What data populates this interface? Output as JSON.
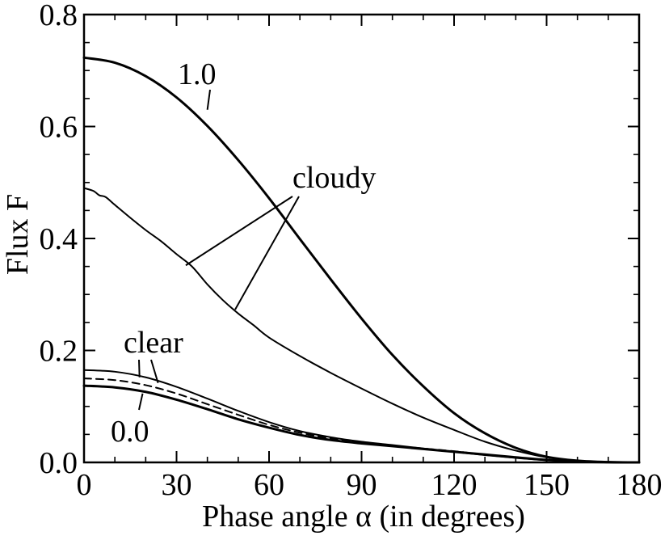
{
  "chart_data": {
    "type": "line",
    "xlabel": "Phase angle α (in degrees)",
    "ylabel": "Flux  F",
    "xlim": [
      0,
      180
    ],
    "ylim": [
      0,
      0.8
    ],
    "xticks": [
      "0",
      "30",
      "60",
      "90",
      "120",
      "150",
      "180"
    ],
    "yticks": [
      "0.0",
      "0.2",
      "0.4",
      "0.6",
      "0.8"
    ],
    "grid": false,
    "legend": "none",
    "series": [
      {
        "name": "1.0",
        "style": "solid-thick",
        "x": [
          0,
          10,
          20,
          30,
          40,
          50,
          60,
          70,
          80,
          90,
          100,
          110,
          120,
          130,
          140,
          150,
          160,
          170,
          180
        ],
        "y": [
          0.723,
          0.714,
          0.69,
          0.652,
          0.601,
          0.54,
          0.472,
          0.399,
          0.327,
          0.257,
          0.192,
          0.136,
          0.088,
          0.052,
          0.026,
          0.01,
          0.003,
          0.0005,
          0.0
        ]
      },
      {
        "name": "cloudy",
        "style": "solid",
        "x": [
          0,
          3,
          5,
          7,
          10,
          15,
          20,
          25,
          30,
          35,
          40,
          45,
          50,
          55,
          60,
          70,
          80,
          90,
          100,
          110,
          120,
          130,
          140,
          150,
          160,
          170,
          180
        ],
        "y": [
          0.49,
          0.485,
          0.477,
          0.474,
          0.46,
          0.437,
          0.415,
          0.395,
          0.372,
          0.35,
          0.318,
          0.29,
          0.266,
          0.245,
          0.223,
          0.19,
          0.16,
          0.132,
          0.105,
          0.08,
          0.058,
          0.037,
          0.021,
          0.009,
          0.003,
          0.0005,
          0.0
        ]
      },
      {
        "name": "clear",
        "style": "solid",
        "x": [
          0,
          10,
          20,
          30,
          40,
          50,
          60,
          70,
          80,
          90,
          100,
          110,
          120,
          130,
          140,
          150,
          160,
          170,
          180
        ],
        "y": [
          0.165,
          0.162,
          0.152,
          0.135,
          0.114,
          0.092,
          0.072,
          0.056,
          0.045,
          0.037,
          0.031,
          0.025,
          0.019,
          0.013,
          0.008,
          0.004,
          0.0015,
          0.0003,
          0.0
        ]
      },
      {
        "name": "",
        "style": "dashed",
        "x": [
          0,
          10,
          20,
          30,
          40,
          50,
          60,
          70,
          80,
          90,
          100,
          110,
          120,
          130,
          140,
          150,
          160,
          170,
          180
        ],
        "y": [
          0.15,
          0.147,
          0.138,
          0.123,
          0.104,
          0.085,
          0.067,
          0.053,
          0.043,
          0.036,
          0.03,
          0.025,
          0.02,
          0.014,
          0.009,
          0.0045,
          0.0017,
          0.0003,
          0.0
        ]
      },
      {
        "name": "0.0",
        "style": "solid-thick",
        "x": [
          0,
          10,
          20,
          30,
          40,
          50,
          60,
          70,
          80,
          90,
          100,
          110,
          120,
          130,
          140,
          150,
          160,
          170,
          180
        ],
        "y": [
          0.137,
          0.134,
          0.126,
          0.112,
          0.095,
          0.077,
          0.062,
          0.049,
          0.04,
          0.034,
          0.029,
          0.024,
          0.019,
          0.014,
          0.009,
          0.0045,
          0.0017,
          0.0003,
          0.0
        ]
      }
    ],
    "annotations": [
      {
        "text": "1.0",
        "target_series": 0,
        "pointer_x": [
          40
        ],
        "pointer_y": [
          0.63
        ]
      },
      {
        "text": "cloudy",
        "target_series": 1,
        "pointer_x": [
          33,
          49
        ],
        "pointer_y": [
          0.352,
          0.273
        ]
      },
      {
        "text": "clear",
        "target_series": 2,
        "pointer_x": [
          18,
          24
        ],
        "pointer_y": [
          0.152,
          0.142
        ]
      },
      {
        "text": "0.0",
        "target_series": 4,
        "pointer_x": [
          19
        ],
        "pointer_y": [
          0.123
        ]
      }
    ]
  }
}
